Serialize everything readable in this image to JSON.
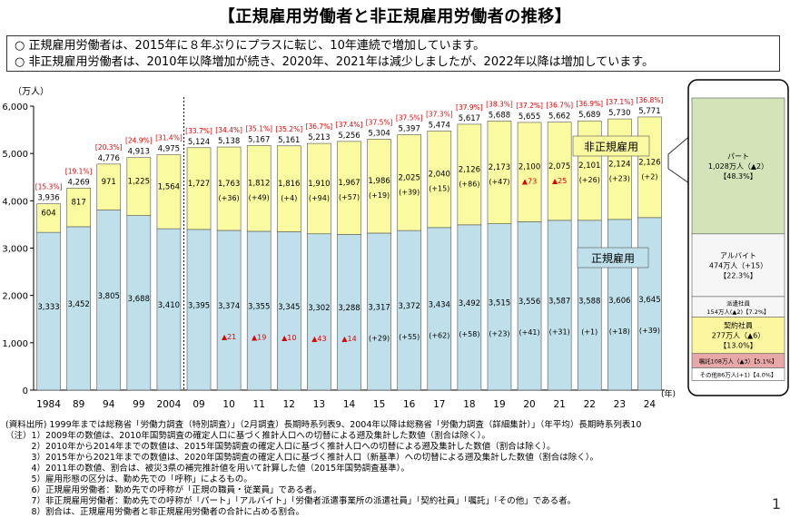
{
  "title": "【正規雇用労働者と非正規雇用労働者の推移】",
  "summary": [
    "○ 正規雇用労働者は、2015年に８年ぶりにプラスに転じ、10年連続で増加しています。",
    "○ 非正規雇用労働者は、2010年以降増加が続き、2020年、2021年は減少しましたが、2022年以降は増加しています。"
  ],
  "colors": {
    "regular": "#bfe0ea",
    "nonregular": "#fafaa0",
    "red": "#e00000",
    "part": "#d3e5b8",
    "dispatch_bg": "#ffffff",
    "contract": "#fcf6a0",
    "shokutaku": "#e8a8a8"
  },
  "chart_data": {
    "type": "bar",
    "stacked": true,
    "unit_label": "（万人）",
    "year_suffix": "(年)",
    "ylim": [
      0,
      6000
    ],
    "yticks": [
      "0",
      "1,000",
      "2,000",
      "3,000",
      "4,000",
      "5,000",
      "6,000"
    ],
    "grid": false,
    "categories": [
      "1984",
      "89",
      "94",
      "99",
      "2004",
      "09",
      "10",
      "11",
      "12",
      "13",
      "14",
      "15",
      "16",
      "17",
      "18",
      "19",
      "20",
      "21",
      "22",
      "23",
      "24"
    ],
    "series": [
      {
        "name": "正規雇用",
        "values": [
          3333,
          3452,
          3805,
          3688,
          3410,
          3395,
          3374,
          3355,
          3345,
          3302,
          3288,
          3317,
          3372,
          3434,
          3492,
          3515,
          3556,
          3587,
          3588,
          3606,
          3645
        ]
      },
      {
        "name": "非正規雇用",
        "values": [
          604,
          817,
          971,
          1225,
          1564,
          1727,
          1763,
          1812,
          1816,
          1910,
          1967,
          1986,
          2025,
          2040,
          2126,
          2173,
          2100,
          2075,
          2101,
          2124,
          2126
        ]
      }
    ],
    "totals": [
      "3,936",
      "4,269",
      "4,776",
      "4,913",
      "4,975",
      "5,124",
      "5,138",
      "5,167",
      "5,161",
      "5,213",
      "5,256",
      "5,304",
      "5,397",
      "5,474",
      "5,617",
      "5,688",
      "5,655",
      "5,662",
      "5,689",
      "5,730",
      "5,771"
    ],
    "total_values": [
      3936,
      4269,
      4776,
      4913,
      4975,
      5124,
      5138,
      5167,
      5161,
      5213,
      5256,
      5304,
      5397,
      5474,
      5617,
      5688,
      5655,
      5662,
      5689,
      5730,
      5771
    ],
    "ratios": [
      "[15.3%]",
      "[19.1%]",
      "[20.3%]",
      "[24.9%]",
      "[31.4%]",
      "[33.7%]",
      "[34.4%]",
      "[35.1%]",
      "[35.2%]",
      "[36.7%]",
      "[37.4%]",
      "[37.5%]",
      "[37.5%]",
      "[37.3%]",
      "[37.9%]",
      "[38.3%]",
      "[37.2%]",
      "[36.7%]",
      "[36.9%]",
      "[37.1%]",
      "[36.8%]"
    ],
    "regular_labels": [
      "3,333",
      "3,452",
      "3,805",
      "3,688",
      "3,410",
      "3,395",
      "3,374",
      "3,355",
      "3,345",
      "3,302",
      "3,288",
      "3,317",
      "3,372",
      "3,434",
      "3,492",
      "3,515",
      "3,556",
      "3,587",
      "3,588",
      "3,606",
      "3,645"
    ],
    "nonregular_labels": [
      "604",
      "817",
      "971",
      "1,225",
      "1,564",
      "1,727",
      "1,763",
      "1,812",
      "1,816",
      "1,910",
      "1,967",
      "1,986",
      "2,025",
      "2,040",
      "2,126",
      "2,173",
      "2,100",
      "2,075",
      "2,101",
      "2,124",
      "2,126"
    ],
    "regular_changes": [
      "",
      "",
      "",
      "",
      "",
      "",
      "▲21",
      "▲19",
      "▲10",
      "▲43",
      "▲14",
      "(+29)",
      "(+55)",
      "(+62)",
      "(+58)",
      "(+23)",
      "(+41)",
      "(+31)",
      "(+1)",
      "(+18)",
      "(+39)"
    ],
    "nonregular_changes": [
      "",
      "",
      "",
      "",
      "",
      "",
      "(+36)",
      "(+49)",
      "(+4)",
      "(+94)",
      "(+57)",
      "(+19)",
      "(+39)",
      "(+15)",
      "(+86)",
      "(+47)",
      "▲73",
      "▲25",
      "(+26)",
      "(+23)",
      "(+2)"
    ],
    "legend_labels": {
      "nonregular": "非正規雇用",
      "regular": "正規雇用"
    },
    "breakdown": [
      {
        "label": "パート",
        "line2": "1,028万人（▲2）",
        "line3": "【48.3%】",
        "value": 1028
      },
      {
        "label": "アルバイト",
        "line2": "474万人（+15）",
        "line3": "【22.3%】",
        "value": 474
      },
      {
        "label": "派遣社員",
        "line2": "154万人(▲2)【7.2%】",
        "line3": "",
        "value": 154
      },
      {
        "label": "契約社員",
        "line2": "277万人（▲6）",
        "line3": "【13.0%】",
        "value": 277
      },
      {
        "label": "嘱託108万人（▲3）【5.1%】",
        "line2": "",
        "line3": "",
        "value": 108
      },
      {
        "label": "その他86万人(+1)【4.0%】",
        "line2": "",
        "line3": "",
        "value": 86
      }
    ]
  },
  "notes": [
    "(資料出所) 1999年までは総務省「労働力調査（特別調査）」（2月調査）長期時系列表9、2004年以降は総務省「労働力調査（詳細集計）」（年平均）長期時系列表10",
    "（注）1）2009年の数値は、2010年国勢調査の確定人口に基づく推計人口への切替による遡及集計した数値（割合は除く）。",
    "　　　2）2010年から2014年までの数値は、2015年国勢調査の確定人口に基づく推計人口への切替による遡及集計した数値（割合は除く）。",
    "　　　3）2015年から2021年までの数値は、2020年国勢調査の確定人口に基づく推計人口（新基準）への切替による遡及集計した数値（割合は除く）。",
    "　　　4）2011年の数値、割合は、被災3県の補完推計値を用いて計算した値（2015年国勢調査基準）。",
    "　　　5）雇用形態の区分は、勤め先での「呼称」によるもの。",
    "　　　6）正規雇用労働者：勤め先での呼称が「正規の職員・従業員」である者。",
    "　　　7）非正規雇用労働者：勤め先での呼称が「パート」「アルバイト」「労働者派遣事業所の派遣社員」「契約社員」「嘱託」「その他」である者。",
    "　　　8）割合は、正規雇用労働者と非正規雇用労働者の合計に占める割合。"
  ],
  "page_number": "1"
}
